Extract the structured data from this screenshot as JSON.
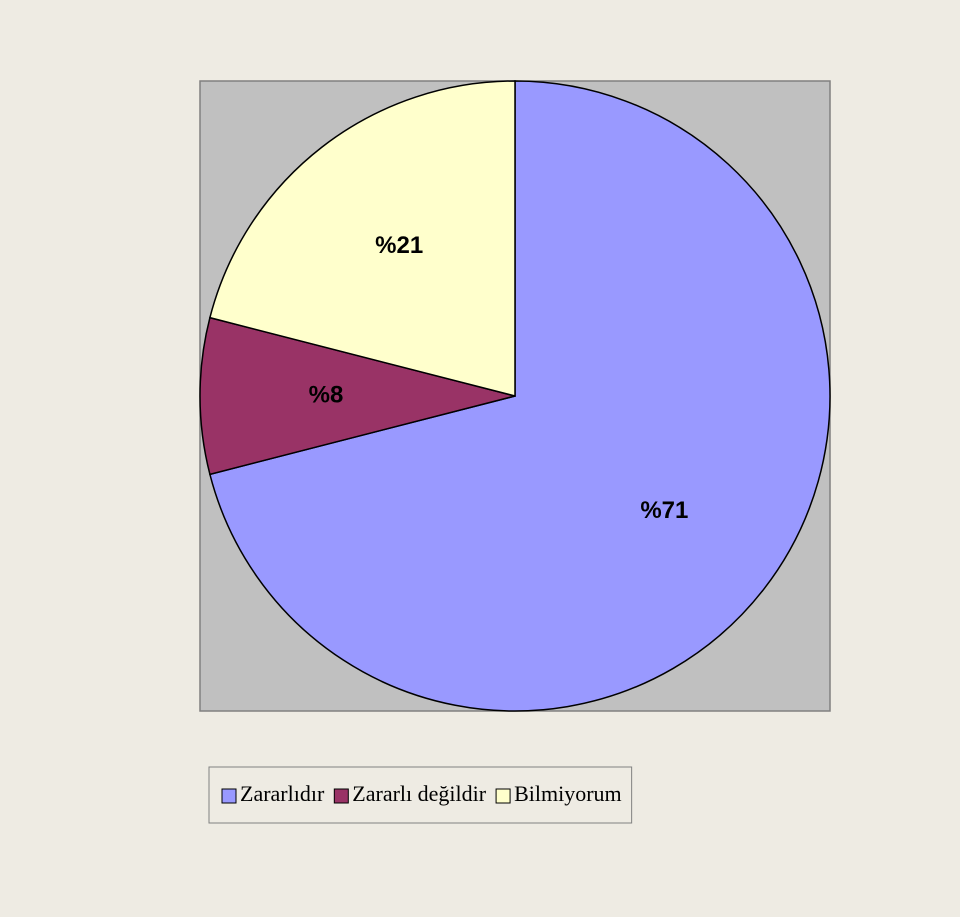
{
  "chart_data": {
    "type": "pie",
    "categories": [
      "Zararlıdır",
      "Zararlı değildir",
      "Bilmiyorum"
    ],
    "values": [
      71,
      8,
      21
    ],
    "value_labels": [
      "%71",
      "%8",
      "%21"
    ],
    "colors": [
      "#9999ff",
      "#993366",
      "#ffffcc"
    ],
    "legend": "bottom"
  }
}
